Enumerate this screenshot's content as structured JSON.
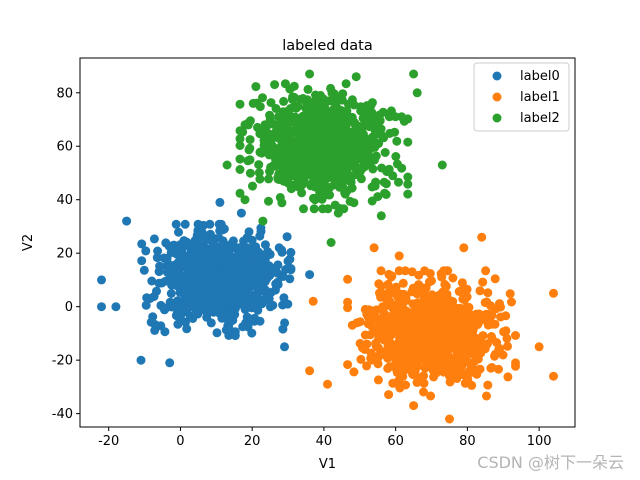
{
  "chart_data": {
    "type": "scatter",
    "title": "labeled data",
    "xlabel": "V1",
    "ylabel": "V2",
    "xlim": [
      -28,
      110
    ],
    "ylim": [
      -45,
      93
    ],
    "xticks": [
      -20,
      0,
      20,
      40,
      60,
      80,
      100
    ],
    "yticks": [
      -40,
      -20,
      0,
      20,
      40,
      60,
      80
    ],
    "grid": false,
    "legend_position": "top-right",
    "series": [
      {
        "name": "label0",
        "color": "#1f77b4",
        "center": [
          10,
          10
        ],
        "count": 900,
        "spread": [
          8,
          8
        ],
        "outliers": [
          [
            -22,
            0
          ],
          [
            -22,
            10
          ],
          [
            -18,
            0
          ],
          [
            -15,
            32
          ],
          [
            -11,
            -20
          ],
          [
            -3,
            -21
          ],
          [
            11,
            39
          ],
          [
            17,
            35
          ],
          [
            29,
            -15
          ],
          [
            30,
            17
          ],
          [
            36,
            12
          ]
        ]
      },
      {
        "name": "label1",
        "color": "#ff7f0e",
        "center": [
          70,
          -10
        ],
        "count": 900,
        "spread": [
          9,
          9
        ],
        "outliers": [
          [
            104,
            5
          ],
          [
            104,
            -26
          ],
          [
            100,
            -15
          ],
          [
            84,
            26
          ],
          [
            79,
            22
          ],
          [
            54,
            22
          ],
          [
            61,
            19
          ],
          [
            37,
            2
          ],
          [
            36,
            -24
          ],
          [
            41,
            -29
          ],
          [
            65,
            -37
          ],
          [
            75,
            -42
          ]
        ]
      },
      {
        "name": "label2",
        "color": "#2ca02c",
        "center": [
          40,
          60
        ],
        "count": 900,
        "spread": [
          9,
          9
        ],
        "outliers": [
          [
            65,
            87
          ],
          [
            66,
            80
          ],
          [
            73,
            53
          ],
          [
            18,
            68
          ],
          [
            13,
            53
          ],
          [
            18,
            40
          ],
          [
            23,
            32
          ],
          [
            42,
            24
          ],
          [
            44,
            35
          ],
          [
            56,
            34
          ],
          [
            49,
            86
          ],
          [
            36,
            87
          ]
        ]
      }
    ]
  },
  "watermark": "CSDN @树下一朵云"
}
